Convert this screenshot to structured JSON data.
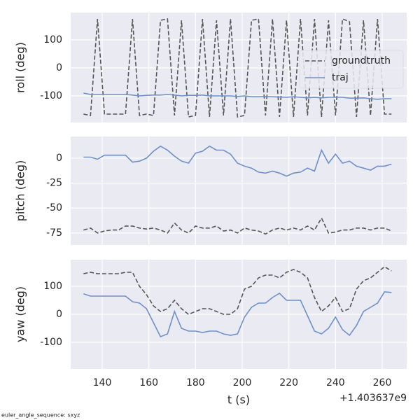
{
  "chart_data": [
    {
      "type": "line",
      "ylabel": "roll (deg)",
      "x": [
        132,
        135,
        138,
        141,
        144,
        147,
        150,
        153,
        156,
        159,
        162,
        165,
        168,
        171,
        174,
        177,
        180,
        183,
        186,
        189,
        192,
        195,
        198,
        201,
        204,
        207,
        210,
        213,
        216,
        219,
        222,
        225,
        228,
        231,
        234,
        237,
        240,
        243,
        246,
        249,
        252,
        255,
        258,
        261,
        264
      ],
      "series": [
        {
          "name": "groundtruth",
          "color": "#555555",
          "dashed": true,
          "values": [
            -165,
            -170,
            175,
            -165,
            -165,
            -165,
            -165,
            175,
            -170,
            -165,
            -170,
            170,
            175,
            -170,
            170,
            -175,
            -170,
            175,
            -175,
            170,
            -170,
            175,
            -175,
            -170,
            170,
            175,
            -170,
            175,
            -175,
            170,
            -175,
            175,
            -170,
            175,
            -175,
            170,
            -170,
            175,
            165,
            -175,
            170,
            -170,
            175,
            -165,
            -165
          ]
        },
        {
          "name": "traj",
          "color": "#6f8fc8",
          "dashed": false,
          "values": [
            -90,
            -95,
            -95,
            -95,
            -95,
            -95,
            -95,
            -97,
            -100,
            -98,
            -97,
            -97,
            -95,
            -97,
            -100,
            -98,
            -98,
            -97,
            -100,
            -100,
            -100,
            -100,
            -102,
            -100,
            -103,
            -103,
            -102,
            -103,
            -104,
            -105,
            -103,
            -105,
            -107,
            -105,
            -107,
            -105,
            -105,
            -105,
            -108,
            -108,
            -107,
            -110,
            -112,
            -110,
            -110
          ]
        }
      ],
      "xlim": [
        126.5,
        270.5
      ],
      "xticks": [
        140,
        160,
        180,
        200,
        220,
        240,
        260
      ],
      "ylim": [
        -195,
        197.5
      ],
      "yticks": [
        -100,
        0,
        100
      ],
      "grid": true,
      "legend": "right"
    },
    {
      "type": "line",
      "ylabel": "pitch (deg)",
      "x": [
        132,
        135,
        138,
        141,
        144,
        147,
        150,
        153,
        156,
        159,
        162,
        165,
        168,
        171,
        174,
        177,
        180,
        183,
        186,
        189,
        192,
        195,
        198,
        201,
        204,
        207,
        210,
        213,
        216,
        219,
        222,
        225,
        228,
        231,
        234,
        237,
        240,
        243,
        246,
        249,
        252,
        255,
        258,
        261,
        264
      ],
      "series": [
        {
          "color": "#555555",
          "dashed": true,
          "values": [
            -72,
            -70,
            -75,
            -73,
            -72,
            -72,
            -68,
            -68,
            -70,
            -71,
            -70,
            -72,
            -75,
            -65,
            -72,
            -75,
            -68,
            -70,
            -70,
            -68,
            -73,
            -72,
            -75,
            -70,
            -72,
            -73,
            -76,
            -72,
            -70,
            -72,
            -70,
            -72,
            -68,
            -72,
            -60,
            -75,
            -74,
            -72,
            -72,
            -70,
            -70,
            -72,
            -70,
            -70,
            -73
          ]
        },
        {
          "color": "#6f8fc8",
          "dashed": false,
          "values": [
            1,
            1,
            -1,
            3,
            3,
            3,
            3,
            -4,
            -3,
            0,
            7,
            12,
            8,
            2,
            -3,
            -5,
            5,
            7,
            12,
            8,
            8,
            4,
            -5,
            -8,
            -10,
            -14,
            -15,
            -13,
            -15,
            -18,
            -15,
            -14,
            -10,
            -13,
            8,
            -5,
            4,
            -5,
            -3,
            -8,
            -10,
            -12,
            -8,
            -8,
            -6
          ]
        }
      ],
      "xlim": [
        126.5,
        270.5
      ],
      "xticks": [
        140,
        160,
        180,
        200,
        220,
        240,
        260
      ],
      "ylim": [
        -87,
        21.7
      ],
      "yticks": [
        -75,
        -50,
        -25,
        0
      ],
      "grid": true
    },
    {
      "type": "line",
      "ylabel": "yaw (deg)",
      "xlabel": "t (s)",
      "offset_label": "+1.403637e9",
      "x": [
        132,
        135,
        138,
        141,
        144,
        147,
        150,
        153,
        156,
        159,
        162,
        165,
        168,
        171,
        174,
        177,
        180,
        183,
        186,
        189,
        192,
        195,
        198,
        201,
        204,
        207,
        210,
        213,
        216,
        219,
        222,
        225,
        228,
        231,
        234,
        237,
        240,
        243,
        246,
        249,
        252,
        255,
        258,
        261,
        264
      ],
      "series": [
        {
          "color": "#555555",
          "dashed": true,
          "values": [
            145,
            150,
            145,
            145,
            145,
            145,
            150,
            150,
            100,
            70,
            30,
            10,
            20,
            50,
            20,
            0,
            10,
            20,
            20,
            10,
            0,
            0,
            20,
            90,
            100,
            130,
            140,
            140,
            130,
            150,
            160,
            150,
            130,
            60,
            10,
            30,
            60,
            10,
            20,
            90,
            120,
            130,
            150,
            170,
            155
          ]
        },
        {
          "color": "#6f8fc8",
          "dashed": false,
          "values": [
            73,
            65,
            65,
            65,
            65,
            65,
            65,
            45,
            40,
            20,
            -30,
            -80,
            -70,
            10,
            -50,
            -60,
            -60,
            -65,
            -60,
            -60,
            -70,
            -75,
            -70,
            -10,
            25,
            40,
            40,
            60,
            75,
            50,
            50,
            50,
            -5,
            -60,
            -70,
            -50,
            -10,
            -55,
            -75,
            -40,
            10,
            25,
            40,
            80,
            78
          ]
        }
      ],
      "xlim": [
        126.5,
        270.5
      ],
      "xticks": [
        140,
        160,
        180,
        200,
        220,
        240,
        260
      ],
      "ylim": [
        -195,
        195
      ],
      "yticks": [
        -100,
        0,
        100
      ],
      "grid": true
    }
  ],
  "footer": "euler_angle_sequence: sxyz"
}
